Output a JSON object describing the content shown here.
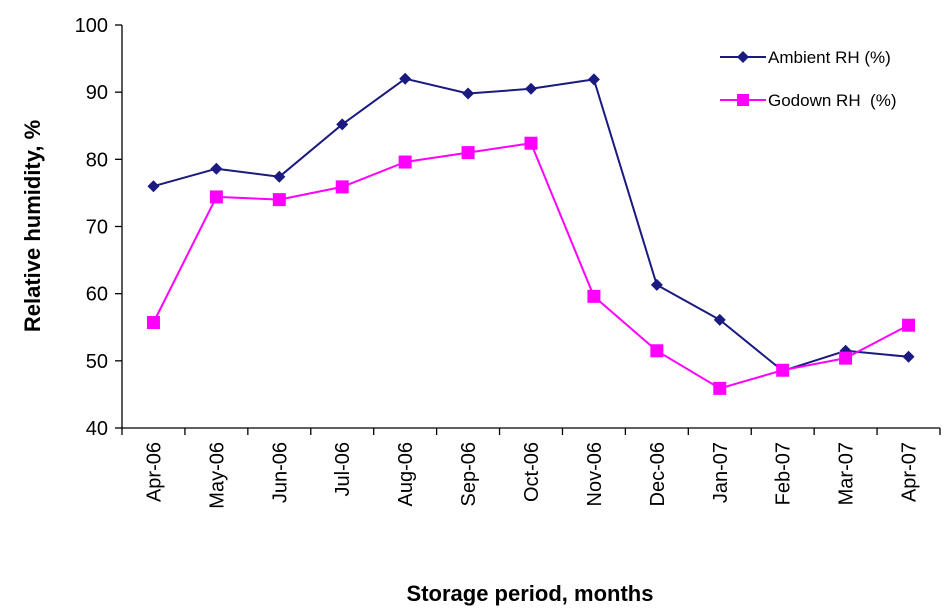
{
  "chart_data": {
    "type": "line",
    "title": "",
    "xlabel": "Storage period, months",
    "ylabel": "Relative humidity, %",
    "categories": [
      "Apr-06",
      "May-06",
      "Jun-06",
      "Jul-06",
      "Aug-06",
      "Sep-06",
      "Oct-06",
      "Nov-06",
      "Dec-06",
      "Jan-07",
      "Feb-07",
      "Mar-07",
      "Apr-07"
    ],
    "ylim": [
      40,
      100
    ],
    "yticks": [
      "40",
      "50",
      "60",
      "70",
      "80",
      "90",
      "100"
    ],
    "grid": false,
    "legend_position": "top-right",
    "series": [
      {
        "name": "Ambient RH (%)",
        "color": "#1a1a80",
        "marker": "diamond",
        "values": [
          76.0,
          78.6,
          77.4,
          85.2,
          92.0,
          89.8,
          90.5,
          91.9,
          61.3,
          56.1,
          48.5,
          51.5,
          50.6
        ]
      },
      {
        "name": "Godown RH  (%)",
        "color": "#ff00ff",
        "marker": "square",
        "values": [
          55.7,
          74.4,
          74.0,
          75.9,
          79.6,
          81.0,
          82.4,
          59.6,
          51.5,
          45.9,
          48.6,
          50.4,
          55.3
        ]
      }
    ]
  }
}
